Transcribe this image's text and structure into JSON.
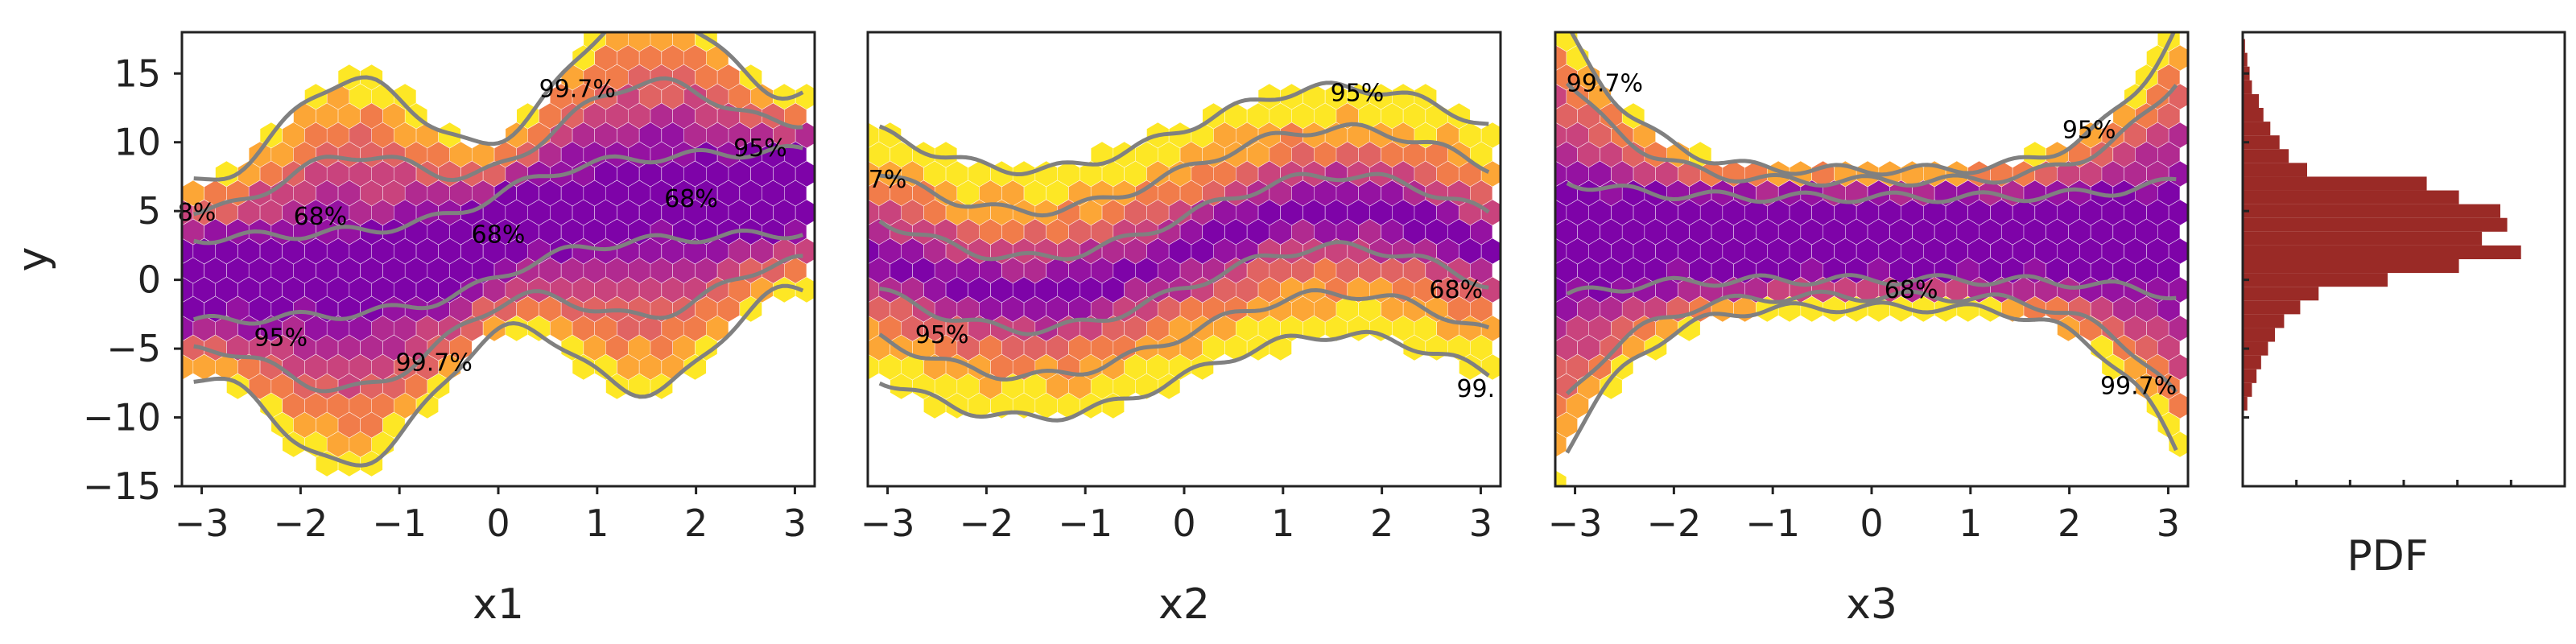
{
  "colors": {
    "hexmap": [
      "#fde725",
      "#fca636",
      "#f17c4a",
      "#e06363",
      "#c9437d",
      "#b12a90",
      "#9512a1",
      "#7e03a8"
    ],
    "contour": "#808080",
    "histogram": "#9a2a26",
    "frame": "#222222"
  },
  "chart_data": [
    {
      "type": "hexbin",
      "function": "y = x1 + x1·sin(x1)-style band",
      "xlabel": "x1",
      "ylabel": "y",
      "xlim": [
        -3.2,
        3.2
      ],
      "ylim": [
        -15,
        18
      ],
      "xticks": [
        "−3",
        "−2",
        "−1",
        "0",
        "1",
        "2",
        "3"
      ],
      "yticks": [
        "15",
        "10",
        "5",
        "0",
        "−5",
        "−10",
        "−15"
      ],
      "ytick_values": [
        15,
        10,
        5,
        0,
        -5,
        -10,
        -15
      ],
      "center_curve": "tanh",
      "contour_labels": [
        {
          "text": "99.7%",
          "x": 0.8,
          "y": 13.8
        },
        {
          "text": "95%",
          "x": 2.65,
          "y": 9.5
        },
        {
          "text": "68%",
          "x": 1.95,
          "y": 5.8
        },
        {
          "text": "68%",
          "x": -1.8,
          "y": 4.5
        },
        {
          "text": "68%",
          "x": 0,
          "y": 3.2
        },
        {
          "text": "8%",
          "x": -3.05,
          "y": 4.8
        },
        {
          "text": "95%",
          "x": -2.2,
          "y": -4.3
        },
        {
          "text": "99.7%",
          "x": -0.65,
          "y": -6.1
        }
      ]
    },
    {
      "type": "hexbin",
      "xlabel": "x2",
      "xlim": [
        -3.2,
        3.2
      ],
      "ylim": [
        -15,
        18
      ],
      "xticks": [
        "−3",
        "−2",
        "−1",
        "0",
        "1",
        "2",
        "3"
      ],
      "center_curve": "sin",
      "contour_labels": [
        {
          "text": "95%",
          "x": 1.75,
          "y": 13.5
        },
        {
          "text": "7%",
          "x": -3.0,
          "y": 7.2
        },
        {
          "text": "68%",
          "x": 2.75,
          "y": -0.8
        },
        {
          "text": "95%",
          "x": -2.45,
          "y": -4.1
        },
        {
          "text": "99.",
          "x": 2.95,
          "y": -8.0
        }
      ]
    },
    {
      "type": "hexbin",
      "xlabel": "x3",
      "xlim": [
        -3.2,
        3.2
      ],
      "ylim": [
        -15,
        18
      ],
      "xticks": [
        "−3",
        "−2",
        "−1",
        "0",
        "1",
        "2",
        "3"
      ],
      "center_curve": "flat",
      "contour_labels": [
        {
          "text": "99.7%",
          "x": -2.7,
          "y": 14.2
        },
        {
          "text": "95%",
          "x": 2.2,
          "y": 10.8
        },
        {
          "text": "68%",
          "x": 0.4,
          "y": -0.8
        },
        {
          "text": "99.7%",
          "x": 2.7,
          "y": -7.8
        }
      ]
    },
    {
      "type": "histogram",
      "orientation": "horizontal",
      "xlabel": "PDF",
      "ylim": [
        -15,
        18
      ],
      "bin_width": 1.0,
      "bins": [
        {
          "y": -9,
          "density": 0.002
        },
        {
          "y": -8,
          "density": 0.004
        },
        {
          "y": -7,
          "density": 0.006
        },
        {
          "y": -6,
          "density": 0.008
        },
        {
          "y": -5,
          "density": 0.011
        },
        {
          "y": -4,
          "density": 0.014
        },
        {
          "y": -3,
          "density": 0.018
        },
        {
          "y": -2,
          "density": 0.025
        },
        {
          "y": -1,
          "density": 0.033
        },
        {
          "y": 0,
          "density": 0.063
        },
        {
          "y": 1,
          "density": 0.094
        },
        {
          "y": 2,
          "density": 0.121
        },
        {
          "y": 3,
          "density": 0.104
        },
        {
          "y": 4,
          "density": 0.115
        },
        {
          "y": 5,
          "density": 0.112
        },
        {
          "y": 6,
          "density": 0.094
        },
        {
          "y": 7,
          "density": 0.08
        },
        {
          "y": 8,
          "density": 0.028
        },
        {
          "y": 9,
          "density": 0.02
        },
        {
          "y": 10,
          "density": 0.016
        },
        {
          "y": 11,
          "density": 0.012
        },
        {
          "y": 12,
          "density": 0.009
        },
        {
          "y": 13,
          "density": 0.007
        },
        {
          "y": 14,
          "density": 0.004
        },
        {
          "y": 15,
          "density": 0.003
        },
        {
          "y": 16,
          "density": 0.002
        },
        {
          "y": 17,
          "density": 0.001
        }
      ],
      "xlim": [
        0,
        0.14
      ]
    }
  ]
}
